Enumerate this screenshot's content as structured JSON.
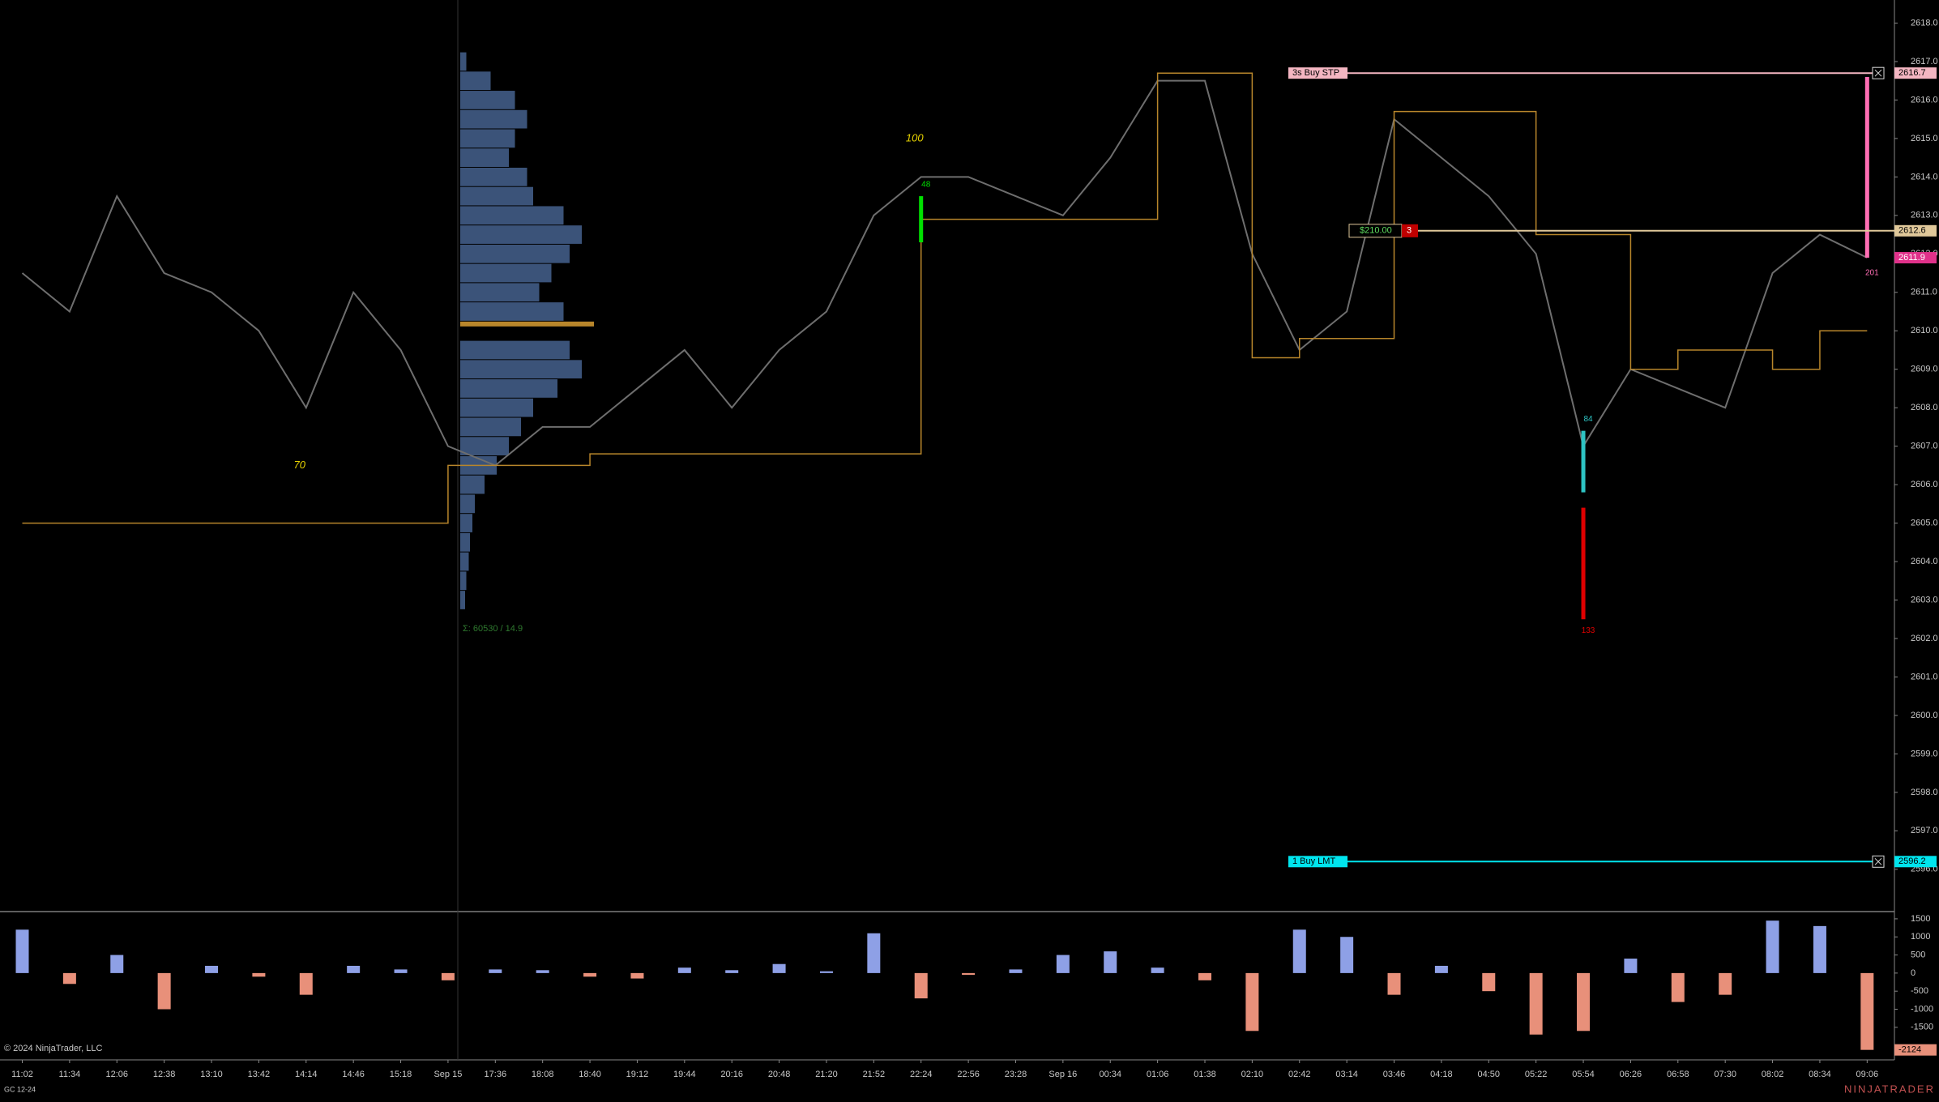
{
  "chart_data": [
    {
      "type": "line",
      "instrument": "GC 12-24",
      "copyright": "© 2024 NinjaTrader, LLC",
      "brand": "NINJATRADER",
      "profile_summary": "Σ: 60530 / 14.9",
      "categories": [
        "11:02",
        "11:34",
        "12:06",
        "12:38",
        "13:10",
        "13:42",
        "14:14",
        "14:46",
        "15:18",
        "Sep 15",
        "17:36",
        "18:08",
        "18:40",
        "19:12",
        "19:44",
        "20:16",
        "20:48",
        "21:20",
        "21:52",
        "22:24",
        "22:56",
        "23:28",
        "Sep 16",
        "00:34",
        "01:06",
        "01:38",
        "02:10",
        "02:42",
        "03:14",
        "03:46",
        "04:18",
        "04:50",
        "05:22",
        "05:54",
        "06:26",
        "06:58",
        "07:30",
        "08:02",
        "08:34",
        "09:06"
      ],
      "series": [
        {
          "color": "#6e6e6e",
          "values": [
            2611.5,
            2610.5,
            2613.5,
            2611.5,
            2611,
            2610,
            2608,
            2611,
            2609.5,
            2607,
            2606.5,
            2607.5,
            2607.5,
            2608.5,
            2609.5,
            2608,
            2609.5,
            2610.5,
            2613,
            2614,
            2614,
            2613.5,
            2613,
            2614.5,
            2616.5,
            2616.5,
            2612,
            2609.5,
            2610.5,
            2615.5,
            2614.5,
            2613.5,
            2612,
            2607,
            2609,
            2608.5,
            2608,
            2611.5,
            2612.5,
            2611.9
          ]
        },
        {
          "color": "#b8862b",
          "values": [
            2605,
            2605,
            2605,
            2605,
            2605,
            2605,
            2605,
            2605,
            2605,
            2606.5,
            2606.5,
            2606.5,
            2606.8,
            2606.8,
            2606.8,
            2606.8,
            2606.8,
            2606.8,
            2606.8,
            2612.9,
            2612.9,
            2612.9,
            2612.9,
            2612.9,
            2616.7,
            2616.7,
            2609.3,
            2609.8,
            2609.8,
            2615.7,
            2615.7,
            2615.7,
            2612.5,
            2612.5,
            2609,
            2609.5,
            2609.5,
            2609,
            2610,
            2610
          ]
        }
      ],
      "ylim": [
        2594.9,
        2618.6
      ],
      "yticks": [
        {
          "value": 2596,
          "label": "2596.0"
        },
        {
          "value": 2597,
          "label": "2597.0"
        },
        {
          "value": 2598,
          "label": "2598.0"
        },
        {
          "value": 2599,
          "label": "2599.0"
        },
        {
          "value": 2600,
          "label": "2600.0"
        },
        {
          "value": 2601,
          "label": "2601.0"
        },
        {
          "value": 2602,
          "label": "2602.0"
        },
        {
          "value": 2603,
          "label": "2603.0"
        },
        {
          "value": 2604,
          "label": "2604.0"
        },
        {
          "value": 2605,
          "label": "2605.0"
        },
        {
          "value": 2606,
          "label": "2606.0"
        },
        {
          "value": 2607,
          "label": "2607.0"
        },
        {
          "value": 2608,
          "label": "2608.0"
        },
        {
          "value": 2609,
          "label": "2609.0"
        },
        {
          "value": 2610,
          "label": "2610.0"
        },
        {
          "value": 2611,
          "label": "2611.0"
        },
        {
          "value": 2612,
          "label": "2612.0"
        },
        {
          "value": 2613,
          "label": "2613.0"
        },
        {
          "value": 2614,
          "label": "2614.0"
        },
        {
          "value": 2615,
          "label": "2615.0"
        },
        {
          "value": 2616,
          "label": "2616.0"
        },
        {
          "value": 2617,
          "label": "2617.0"
        },
        {
          "value": 2618,
          "label": "2618.0"
        }
      ],
      "profile": {
        "color": "#3b5379",
        "poc_color": "#b8862b",
        "poc": 2610,
        "prices": [
          2617,
          2616.5,
          2616,
          2615.5,
          2615,
          2614.5,
          2614,
          2613.5,
          2613,
          2612.5,
          2612,
          2611.5,
          2611,
          2610.5,
          2610,
          2609.5,
          2609,
          2608.5,
          2608,
          2607.5,
          2607,
          2606.5,
          2606,
          2605.5,
          2605,
          2604.5,
          2604,
          2603.5,
          2603
        ],
        "volumes": [
          5,
          25,
          45,
          55,
          45,
          40,
          55,
          60,
          85,
          100,
          90,
          75,
          65,
          85,
          110,
          90,
          100,
          80,
          60,
          50,
          40,
          30,
          20,
          12,
          10,
          8,
          7,
          5,
          4
        ]
      },
      "annotations": [
        {
          "text": "70",
          "category": "14:14",
          "price": 2606.5
        },
        {
          "text": "100",
          "category": "22:24",
          "price": 2615
        }
      ],
      "markers": [
        {
          "label": 48,
          "category": "22:24",
          "top": 2613.5,
          "bottom": 2612.3,
          "color": "#00e000",
          "label_price": 2613.8
        },
        {
          "label": 84,
          "category": "05:54",
          "top": 2607.4,
          "bottom": 2605.8,
          "color": "#2ec4c4",
          "label_price": 2607.7
        },
        {
          "label": 133,
          "category": "05:54",
          "top": 2605.4,
          "bottom": 2602.5,
          "color": "#e00000",
          "label_price": 2602.2
        },
        {
          "label": 201,
          "category": "09:06",
          "top": 2616.6,
          "bottom": 2611.9,
          "color": "#ff6eb4",
          "label_price": 2611.5
        }
      ],
      "orders": [
        {
          "label": "3s  Buy STP",
          "price": 2616.7,
          "color": "#f4b6c2"
        },
        {
          "label": "1  Buy LMT",
          "price": 2596.2,
          "color": "#00e5ee"
        }
      ],
      "position": {
        "pnl": "$210.00",
        "quantity": 3,
        "price": 2612.6,
        "color": "#e0c89a"
      },
      "last_price": {
        "price": 2611.9,
        "color": "#e0318a"
      }
    },
    {
      "type": "bar",
      "colors": {
        "positive": "#8ea0e6",
        "negative": "#e8907a"
      },
      "values": [
        1200,
        -300,
        500,
        -1000,
        200,
        -100,
        -600,
        200,
        100,
        -200,
        100,
        80,
        -100,
        -150,
        150,
        80,
        250,
        50,
        1100,
        -700,
        -50,
        100,
        500,
        600,
        150,
        -200,
        -1600,
        1200,
        1000,
        -600,
        200,
        -500,
        -1700,
        -1600,
        400,
        -800,
        -600,
        1450,
        1300,
        -2124
      ],
      "ylim": [
        -2400,
        1700
      ],
      "yticks": [
        1500,
        1000,
        500,
        0,
        -500,
        -1000,
        -1500
      ]
    }
  ]
}
